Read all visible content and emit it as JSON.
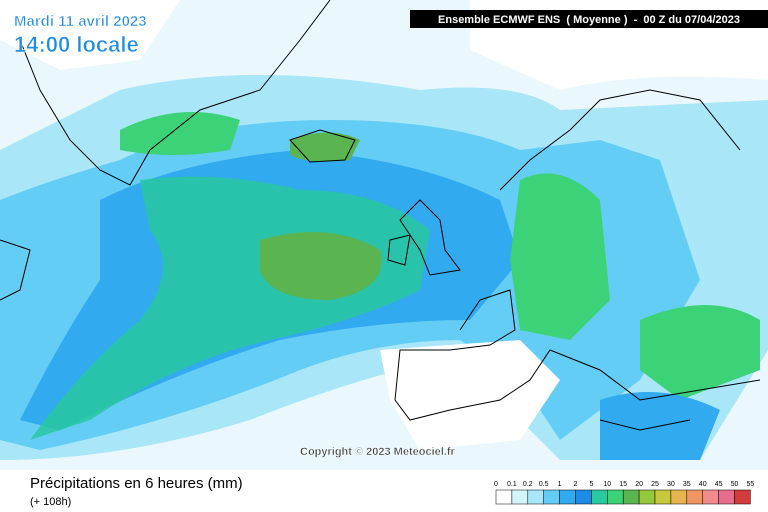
{
  "header": {
    "date": "Mardi 11 avril 2023",
    "time": "14:00 locale",
    "model": "Ensemble ECMWF ENS  ( Moyenne )  -  00 Z du 07/04/2023"
  },
  "copyright": "Copyright © 2023 Meteociel.fr",
  "footer": {
    "title": "Précipitations en 6 heures (mm)",
    "lead": "(+ 108h)"
  },
  "legend": {
    "labels": [
      "0",
      "0.1",
      "0.2",
      "0.5",
      "1",
      "2",
      "5",
      "10",
      "15",
      "20",
      "25",
      "30",
      "35",
      "40",
      "45",
      "50",
      "55"
    ],
    "colors": [
      "#ffffff",
      "#d2f5fc",
      "#a8e6f8",
      "#64cdf5",
      "#32aaf0",
      "#1e8ce6",
      "#28c8a0",
      "#3cd278",
      "#5ab450",
      "#96c83c",
      "#c8c83c",
      "#e6b450",
      "#f09664",
      "#f08c8c",
      "#e66e8c",
      "#d23c3c"
    ]
  }
}
